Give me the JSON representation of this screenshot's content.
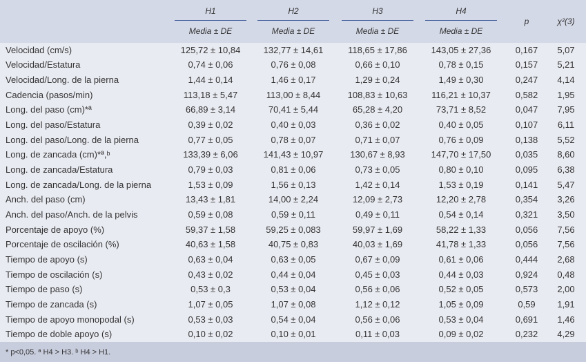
{
  "table": {
    "columns": [
      {
        "group": "H1",
        "sub": "Media ± DE"
      },
      {
        "group": "H2",
        "sub": "Media ± DE"
      },
      {
        "group": "H3",
        "sub": "Media ± DE"
      },
      {
        "group": "H4",
        "sub": "Media ± DE"
      }
    ],
    "p_header": "p",
    "chi_header": "χ²(3)",
    "rows": [
      [
        "Velocidad (cm/s)",
        "125,72 ± 10,84",
        "132,77 ± 14,61",
        "118,65 ± 17,86",
        "143,05 ± 27,36",
        "0,167",
        "5,07"
      ],
      [
        "Velocidad/Estatura",
        "0,74 ± 0,06",
        "0,76 ± 0,08",
        "0,66 ± 0,10",
        "0,78 ± 0,15",
        "0,157",
        "5,21"
      ],
      [
        "Velocidad/Long. de la pierna",
        "1,44 ± 0,14",
        "1,46 ± 0,17",
        "1,29 ± 0,24",
        "1,49 ± 0,30",
        "0,247",
        "4,14"
      ],
      [
        "Cadencia (pasos/min)",
        "113,18 ± 5,47",
        "113,00 ± 8,44",
        "108,83 ± 10,63",
        "116,21 ± 10,37",
        "0,582",
        "1,95"
      ],
      [
        "Long. del paso (cm)*ª",
        "66,89 ± 3,14",
        "70,41 ± 5,44",
        "65,28 ± 4,20",
        "73,71 ± 8,52",
        "0,047",
        "7,95"
      ],
      [
        "Long. del paso/Estatura",
        "0,39 ± 0,02",
        "0,40 ± 0,03",
        "0,36 ± 0,02",
        "0,40 ± 0,05",
        "0,107",
        "6,11"
      ],
      [
        "Long. del paso/Long. de la pierna",
        "0,77 ± 0,05",
        "0,78 ± 0,07",
        "0,71 ± 0,07",
        "0,76 ± 0,09",
        "0,138",
        "5,52"
      ],
      [
        "Long. de zancada (cm)*ª,ᵇ",
        "133,39 ± 6,06",
        "141,43 ± 10,97",
        "130,67 ± 8,93",
        "147,70 ± 17,50",
        "0,035",
        "8,60"
      ],
      [
        "Long. de zancada/Estatura",
        "0,79 ± 0,03",
        "0,81 ± 0,06",
        "0,73 ± 0,05",
        "0,80 ± 0,10",
        "0,095",
        "6,38"
      ],
      [
        "Long. de zancada/Long. de la pierna",
        "1,53 ± 0,09",
        "1,56 ± 0,13",
        "1,42 ± 0,14",
        "1,53 ± 0,19",
        "0,141",
        "5,47"
      ],
      [
        "Anch. del paso (cm)",
        "13,43 ± 1,81",
        "14,00 ± 2,24",
        "12,09 ± 2,73",
        "12,20 ± 2,78",
        "0,354",
        "3,26"
      ],
      [
        "Anch. del paso/Anch. de la pelvis",
        "0,59 ± 0,08",
        "0,59 ± 0,11",
        "0,49 ± 0,11",
        "0,54 ± 0,14",
        "0,321",
        "3,50"
      ],
      [
        "Porcentaje de apoyo (%)",
        "59,37 ± 1,58",
        "59,25 ± 0,083",
        "59,97 ± 1,69",
        "58,22 ± 1,33",
        "0,056",
        "7,56"
      ],
      [
        "Porcentaje de oscilación (%)",
        "40,63 ± 1,58",
        "40,75 ± 0,83",
        "40,03 ± 1,69",
        "41,78 ± 1,33",
        "0,056",
        "7,56"
      ],
      [
        "Tiempo de apoyo (s)",
        "0,63 ± 0,04",
        "0,63 ± 0,05",
        "0,67 ± 0,09",
        "0,61 ± 0,06",
        "0,444",
        "2,68"
      ],
      [
        "Tiempo de oscilación (s)",
        "0,43 ± 0,02",
        "0,44 ± 0,04",
        "0,45 ± 0,03",
        "0,44 ± 0,03",
        "0,924",
        "0,48"
      ],
      [
        "Tiempo de paso (s)",
        "0,53 ± 0,3",
        "0,53 ± 0,04",
        "0,56 ± 0,06",
        "0,52 ± 0,05",
        "0,573",
        "2,00"
      ],
      [
        "Tiempo de zancada (s)",
        "1,07 ± 0,05",
        "1,07 ± 0,08",
        "1,12 ± 0,12",
        "1,05 ± 0,09",
        "0,59",
        "1,91"
      ],
      [
        "Tiempo de apoyo monopodal (s)",
        "0,53 ± 0,03",
        "0,54 ± 0,04",
        "0,56 ± 0,06",
        "0,53 ± 0,04",
        "0,691",
        "1,46"
      ],
      [
        "Tiempo de doble apoyo (s)",
        "0,10 ± 0,02",
        "0,10 ± 0,01",
        "0,11 ± 0,03",
        "0,09 ± 0,02",
        "0,232",
        "4,29"
      ]
    ],
    "footnote": "* p<0,05. ª H4 > H3. ᵇ H4 > H1."
  }
}
